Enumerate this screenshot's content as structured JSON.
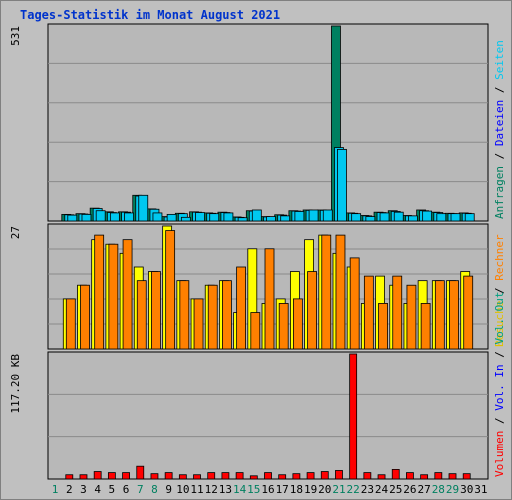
{
  "title": "Tages-Statistik im Monat August 2021",
  "colors": {
    "background": "#c0c0c0",
    "panel": "#b8b8b8",
    "grid": "#8a8a8a",
    "title": "#0033cc",
    "anfragen": "#008060",
    "dateien": "#00c8f0",
    "seiten": "#00c8f0",
    "besuche": "#ffff00",
    "rechner": "#ff8000",
    "volumen": "#ff0000",
    "weekend_label": "#008060",
    "weekday_label": "#000000"
  },
  "legend_top": {
    "items": [
      {
        "text": "Anfragen",
        "color": "#008060"
      },
      {
        "text": "Dateien",
        "color": "#0000ff"
      },
      {
        "text": "Seiten",
        "color": "#00c8f0"
      }
    ]
  },
  "legend_mid": {
    "items": [
      {
        "text": "Besuche",
        "color": "#e0c000"
      },
      {
        "text": "Rechner",
        "color": "#ff8000"
      }
    ]
  },
  "legend_bot": {
    "items": [
      {
        "text": "Volumen",
        "color": "#ff0000"
      },
      {
        "text": "Vol. In",
        "color": "#0000ff"
      },
      {
        "text": "Vol. Out",
        "color": "#00a080"
      }
    ]
  },
  "chart_data": {
    "type": "bar",
    "title": "Tages-Statistik im Monat August 2021",
    "categories": [
      "1",
      "2",
      "3",
      "4",
      "5",
      "6",
      "7",
      "8",
      "9",
      "10",
      "11",
      "12",
      "13",
      "14",
      "15",
      "16",
      "17",
      "18",
      "19",
      "20",
      "21",
      "22",
      "23",
      "24",
      "25",
      "26",
      "27",
      "28",
      "29",
      "30",
      "31"
    ],
    "weekend_days": [
      1,
      7,
      8,
      14,
      15,
      21,
      22,
      28,
      29
    ],
    "panels": [
      {
        "id": "requests",
        "ymax_label": "531",
        "ylim": [
          0,
          531
        ],
        "series": [
          {
            "name": "Anfragen",
            "values": [
              null,
              18,
              20,
              35,
              25,
              25,
              70,
              33,
              12,
              21,
              25,
              22,
              24,
              11,
              28,
              12,
              17,
              28,
              30,
              30,
              531,
              22,
              15,
              24,
              28,
              15,
              30,
              24,
              21,
              22,
              0
            ]
          },
          {
            "name": "Dateien",
            "values": [
              null,
              17,
              19,
              34,
              23,
              24,
              68,
              32,
              11,
              20,
              24,
              21,
              23,
              10,
              27,
              11,
              16,
              27,
              29,
              29,
              200,
              21,
              14,
              23,
              26,
              14,
              28,
              23,
              20,
              21,
              0
            ]
          },
          {
            "name": "Seiten",
            "values": [
              null,
              16,
              18,
              28,
              22,
              22,
              70,
              22,
              18,
              10,
              23,
              20,
              22,
              9,
              30,
              12,
              14,
              26,
              30,
              30,
              195,
              20,
              12,
              22,
              24,
              14,
              27,
              20,
              20,
              20,
              0
            ]
          }
        ]
      },
      {
        "id": "visits",
        "ymax_label": "27",
        "ylim": [
          0,
          27
        ],
        "series": [
          {
            "name": "Besuche",
            "values": [
              null,
              11,
              14,
              24,
              23,
              21,
              18,
              17,
              27,
              15,
              11,
              14,
              15,
              8,
              22,
              10,
              11,
              17,
              24,
              25,
              21,
              18,
              10,
              16,
              14,
              10,
              15,
              15,
              15,
              17,
              0
            ]
          },
          {
            "name": "Rechner",
            "values": [
              null,
              11,
              14,
              25,
              23,
              24,
              15,
              17,
              26,
              15,
              11,
              14,
              15,
              18,
              8,
              22,
              10,
              11,
              17,
              25,
              25,
              20,
              16,
              10,
              16,
              14,
              10,
              15,
              15,
              16,
              0
            ]
          }
        ]
      },
      {
        "id": "volume",
        "ymax_label": "117.20 KB",
        "ylim": [
          0,
          117.2
        ],
        "series": [
          {
            "name": "Volumen",
            "values": [
              null,
              4,
              4,
              7,
              6,
              6,
              12,
              5,
              6,
              4,
              4,
              6,
              6,
              6,
              3,
              6,
              4,
              5,
              6,
              7,
              8,
              117.2,
              6,
              4,
              9,
              6,
              4,
              6,
              5,
              5,
              0
            ]
          }
        ]
      }
    ]
  }
}
